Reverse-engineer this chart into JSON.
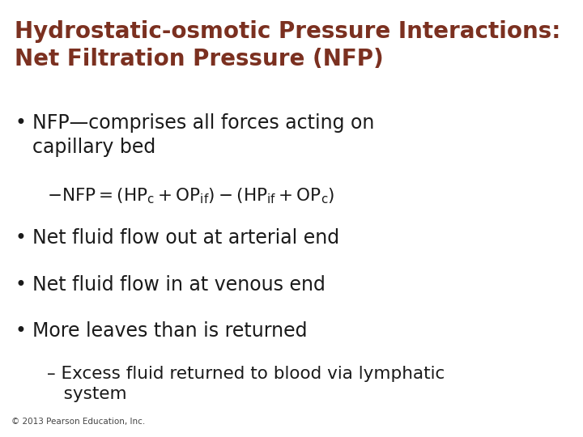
{
  "title_line1": "Hydrostatic-osmotic Pressure Interactions:",
  "title_line2": "Net Filtration Pressure (NFP)",
  "title_color": "#7B3020",
  "background_color": "#FFFFFF",
  "bullet_color": "#1a1a1a",
  "bullet_size": 17,
  "sub_bullet_size": 15.5,
  "title_size": 20,
  "copyright": "© 2013 Pearson Education, Inc.",
  "copyright_size": 7.5
}
